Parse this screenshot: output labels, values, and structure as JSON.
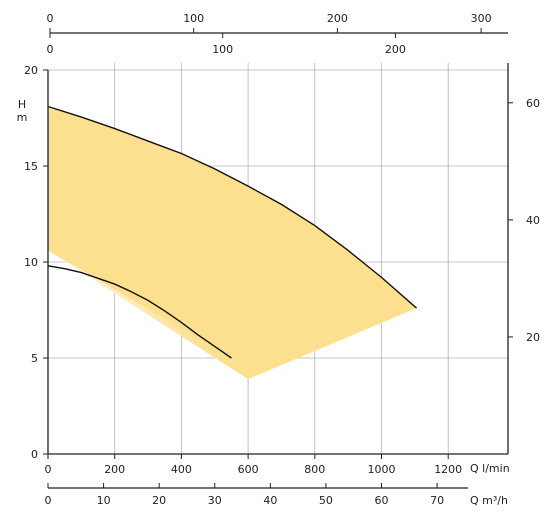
{
  "chart_data": {
    "type": "area",
    "colors": {
      "fill": "#fde08f",
      "curve": "#111111",
      "grid": "#b5b5b5"
    },
    "grid": true,
    "x_axis": {
      "label_unit": "Q l/min",
      "range": [
        0,
        1380
      ],
      "ticks": [
        0,
        200,
        400,
        600,
        800,
        1000,
        1200
      ],
      "tick_labels": [
        "0",
        "200",
        "400",
        "600",
        "800",
        "1000",
        "1200"
      ]
    },
    "x_axis_secondary": {
      "label_unit": "Q m³/h",
      "range": [
        0,
        82.8
      ],
      "ticks": [
        0,
        10,
        20,
        30,
        40,
        50,
        60,
        70
      ],
      "tick_labels": [
        "0",
        "10",
        "20",
        "30",
        "40",
        "50",
        "60",
        "70"
      ]
    },
    "top_axis_1": {
      "range": [
        0,
        319
      ],
      "ticks": [
        0,
        100,
        200,
        300
      ],
      "tick_labels": [
        "0",
        "100",
        "200",
        "300"
      ]
    },
    "top_axis_2": {
      "range": [
        0,
        253
      ],
      "ticks": [
        0,
        100,
        200
      ],
      "tick_labels": [
        "0",
        "100",
        "200"
      ]
    },
    "y_axis": {
      "label_unit": [
        "H",
        "m"
      ],
      "range": [
        0,
        20
      ],
      "ticks": [
        0,
        5,
        10,
        15,
        20
      ],
      "tick_labels": [
        "0",
        "5",
        "10",
        "15",
        "20"
      ]
    },
    "y_axis_right": {
      "range": [
        0,
        65.6
      ],
      "ticks": [
        20,
        40,
        60
      ],
      "tick_labels": [
        "20",
        "40",
        "60"
      ]
    },
    "series": [
      {
        "role": "max-curve",
        "x": [
          0,
          100,
          200,
          300,
          400,
          500,
          600,
          700,
          800,
          900,
          1000,
          1105
        ],
        "y": [
          18.1,
          17.55,
          16.95,
          16.3,
          15.65,
          14.85,
          13.95,
          13.0,
          11.9,
          10.6,
          9.2,
          7.6
        ]
      },
      {
        "role": "min-curve",
        "x": [
          0,
          50,
          100,
          150,
          200,
          250,
          300,
          350,
          400,
          450,
          500,
          550
        ],
        "y": [
          9.8,
          9.65,
          9.45,
          9.15,
          8.85,
          8.45,
          8.0,
          7.45,
          6.85,
          6.2,
          5.6,
          5.0
        ]
      }
    ],
    "envelope_lower_edge": {
      "x": [
        0,
        600,
        1105
      ],
      "y": [
        10.6,
        3.9,
        7.6
      ]
    }
  }
}
